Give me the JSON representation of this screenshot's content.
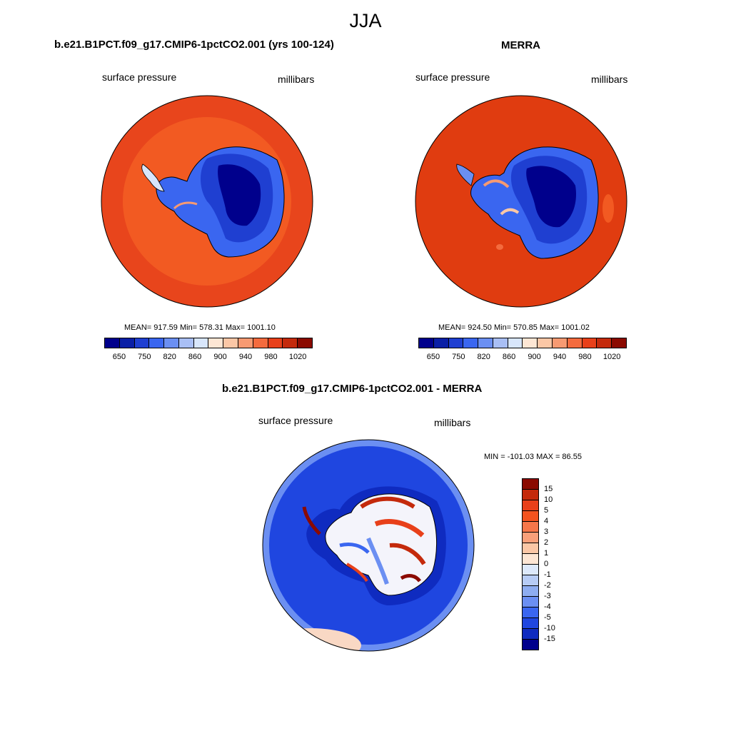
{
  "page": {
    "title": "JJA"
  },
  "panels": [
    {
      "title": "b.e21.B1PCT.f09_g17.CMIP6-1pctCO2.001 (yrs 100-124)",
      "left_label": "surface pressure",
      "right_label": "millibars",
      "stats": "MEAN= 917.59  Min= 578.31  Max= 1001.10"
    },
    {
      "title": "MERRA",
      "left_label": "surface pressure",
      "right_label": "millibars",
      "stats": "MEAN= 924.50  Min= 570.85  Max= 1001.02"
    },
    {
      "title": "b.e21.B1PCT.f09_g17.CMIP6-1pctCO2.001 - MERRA",
      "left_label": "surface pressure",
      "right_label": "millibars",
      "stats": "MIN = -101.03 MAX =  86.55"
    }
  ],
  "colorbar_abs": {
    "colors": [
      "#00008c",
      "#0a1fa6",
      "#1f3fd1",
      "#3a66f0",
      "#6b8ff2",
      "#a9bff5",
      "#d8e6fb",
      "#fde6d4",
      "#fbc7a6",
      "#f79a72",
      "#f46b3e",
      "#e8401a",
      "#c42a0c",
      "#8b0a00"
    ],
    "tick_labels": [
      "650",
      "750",
      "820",
      "860",
      "900",
      "940",
      "980",
      "1020"
    ]
  },
  "colorbar_diff": {
    "colors": [
      "#8b0a00",
      "#c42a0c",
      "#e8401a",
      "#f4531f",
      "#f7774a",
      "#f9a07a",
      "#fbc7a6",
      "#fde6d4",
      "#dde9fb",
      "#b7ccf5",
      "#8eadf0",
      "#6b8ff2",
      "#3a66f0",
      "#1f46e0",
      "#0f2bc0",
      "#00008c"
    ],
    "tick_labels": [
      "15",
      "10",
      "5",
      "4",
      "3",
      "2",
      "1",
      "0",
      "-1",
      "-2",
      "-3",
      "-4",
      "-5",
      "-10",
      "-15"
    ]
  },
  "map_colors": {
    "ocean_model": "#e8451c",
    "ring_model": "#f25a22",
    "ocean_merra": "#e03c10",
    "ice_light": "#3a66f0",
    "ice_mid": "#1f3fd1",
    "ice_dark": "#00008c",
    "coast": "#000000",
    "diff_ocean": "#1f46e0",
    "diff_ocean_dark": "#0f2bc0",
    "diff_edge": "#6b8ff2",
    "diff_warm": "#c42a0c",
    "diff_white": "#f4f4fb"
  }
}
